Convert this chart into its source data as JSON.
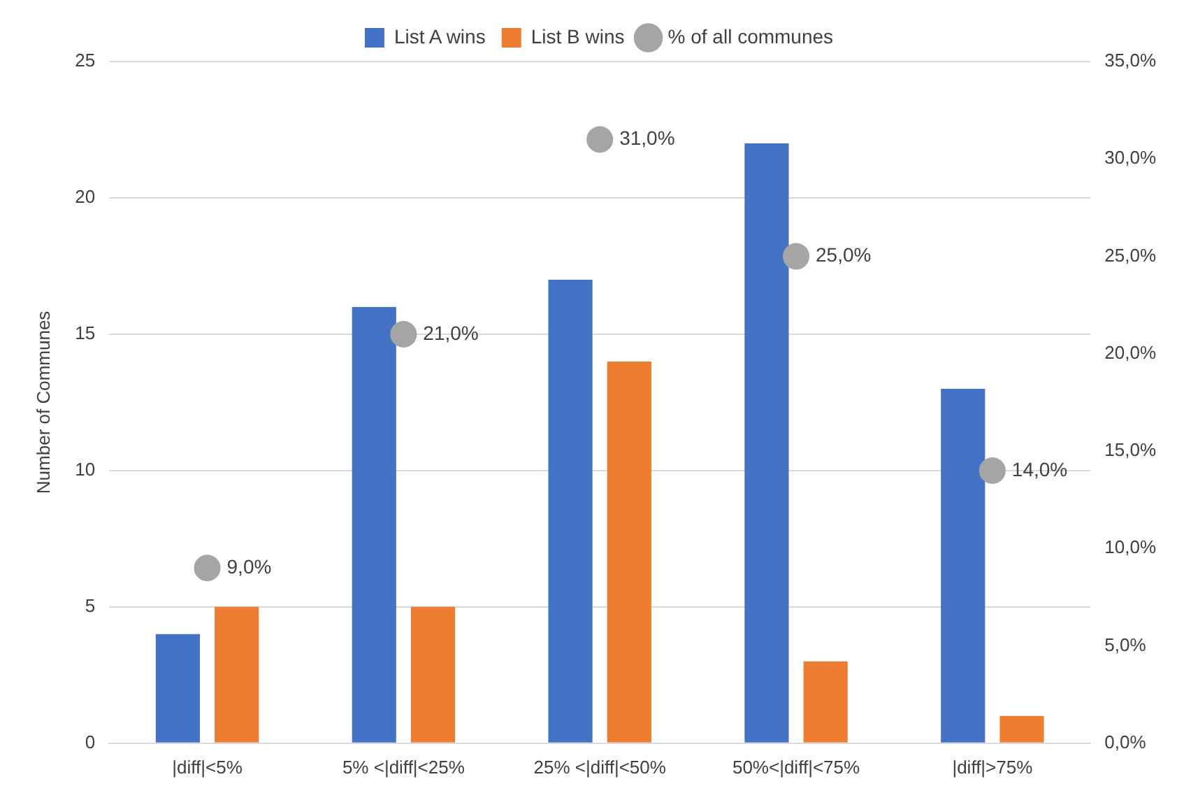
{
  "chart_data": {
    "type": "bar",
    "ylabel": "Number of Communes",
    "categories": [
      "|diff|<5%",
      "5% <|diff|<25%",
      "25% <|diff|<50%",
      "50%<|diff|<75%",
      "|diff|>75%"
    ],
    "series": [
      {
        "name": "List A wins",
        "color": "#4472c4",
        "values": [
          4,
          16,
          17,
          22,
          13
        ]
      },
      {
        "name": "List B wins",
        "color": "#ed7d31",
        "values": [
          5,
          5,
          14,
          3,
          1
        ]
      },
      {
        "name": "% of all communes",
        "type": "scatter",
        "axis": "y2",
        "color": "#a5a5a5",
        "marker": "circle",
        "x": [
          "|diff|<5%",
          "5% <|diff|<25%",
          "25% <|diff|<50%",
          "50%<|diff|<75%",
          "|diff|>75%"
        ],
        "values": [
          9,
          21,
          31,
          25,
          14
        ],
        "value_labels": [
          "9,0%",
          "21,0%",
          "31,0%",
          "25,0%",
          "14,0%"
        ]
      }
    ],
    "ylim": [
      0,
      25
    ],
    "yticks": [
      0,
      5,
      10,
      15,
      20,
      25
    ],
    "y2lim": [
      0,
      35
    ],
    "y2ticks": [
      {
        "value": 0,
        "label": "0,0%"
      },
      {
        "value": 5,
        "label": "5,0%"
      },
      {
        "value": 10,
        "label": "10,0%"
      },
      {
        "value": 15,
        "label": "15,0%"
      },
      {
        "value": 20,
        "label": "20,0%"
      },
      {
        "value": 25,
        "label": "25,0%"
      },
      {
        "value": 30,
        "label": "30,0%"
      },
      {
        "value": 35,
        "label": "35,0%"
      }
    ],
    "grid": "y",
    "legend": "top"
  }
}
